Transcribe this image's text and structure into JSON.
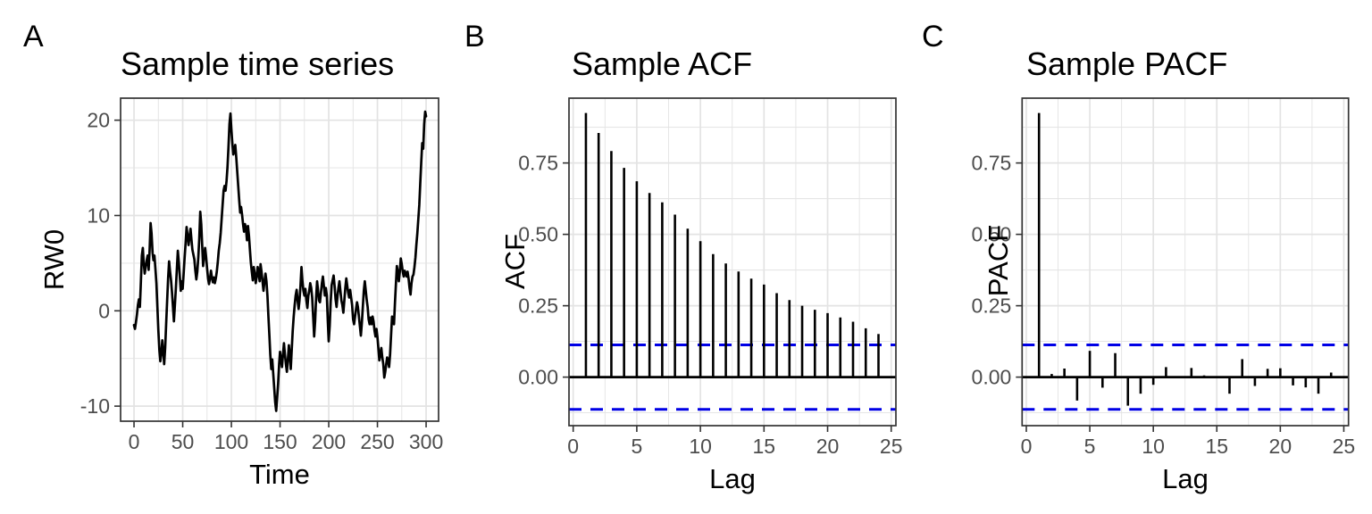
{
  "figure": {
    "background": "#ffffff",
    "line_color": "#000000",
    "grid_color": "#e3e3e3",
    "border_color": "#333333",
    "tick_text_color": "#4d4d4d"
  },
  "chart_data": [
    {
      "type": "line",
      "tag": "A",
      "title": "Sample time series",
      "xlabel": "Time",
      "ylabel": "RW0",
      "xlim": [
        -13.8,
        312.8
      ],
      "ylim": [
        -11.58,
        22.31
      ],
      "xticks": [
        0,
        50,
        100,
        150,
        200,
        250,
        300
      ],
      "xticklabels": [
        "0",
        "50",
        "100",
        "150",
        "200",
        "250",
        "300"
      ],
      "yticks": [
        -10,
        0,
        10,
        20
      ],
      "yticklabels": [
        "-10",
        "0",
        "10",
        "20"
      ],
      "x_minor": [
        25,
        75,
        125,
        175,
        225,
        275
      ],
      "y_minor": [
        -5,
        5,
        15
      ],
      "grid": true,
      "line_color": "#000000",
      "points": [
        [
          0,
          -1.5
        ],
        [
          1,
          -1.9
        ],
        [
          2,
          -1.2
        ],
        [
          3,
          -0.4
        ],
        [
          4,
          0.6
        ],
        [
          5,
          1.2
        ],
        [
          6,
          0.4
        ],
        [
          7,
          3.0
        ],
        [
          8,
          5.8
        ],
        [
          9,
          6.6
        ],
        [
          10,
          5.0
        ],
        [
          11,
          3.9
        ],
        [
          12,
          4.6
        ],
        [
          13,
          5.3
        ],
        [
          14,
          5.8
        ],
        [
          15,
          4.3
        ],
        [
          16,
          6.4
        ],
        [
          17,
          9.2
        ],
        [
          18,
          8.1
        ],
        [
          19,
          6.1
        ],
        [
          20,
          5.3
        ],
        [
          21,
          5.8
        ],
        [
          22,
          4.4
        ],
        [
          23,
          2.9
        ],
        [
          24,
          0.4
        ],
        [
          25,
          -2.1
        ],
        [
          26,
          -4.1
        ],
        [
          27,
          -5.3
        ],
        [
          28,
          -4.4
        ],
        [
          29,
          -3.1
        ],
        [
          30,
          -4.3
        ],
        [
          31,
          -5.6
        ],
        [
          32,
          -3.9
        ],
        [
          33,
          -1.4
        ],
        [
          34,
          1.0
        ],
        [
          35,
          3.4
        ],
        [
          36,
          5.2
        ],
        [
          37,
          4.1
        ],
        [
          38,
          3.2
        ],
        [
          39,
          1.9
        ],
        [
          40,
          0.5
        ],
        [
          41,
          -1.1
        ],
        [
          42,
          0.6
        ],
        [
          43,
          2.4
        ],
        [
          44,
          4.4
        ],
        [
          45,
          6.3
        ],
        [
          46,
          5.1
        ],
        [
          47,
          3.6
        ],
        [
          48,
          2.1
        ],
        [
          49,
          3.1
        ],
        [
          50,
          2.3
        ],
        [
          51,
          3.9
        ],
        [
          52,
          5.6
        ],
        [
          53,
          7.1
        ],
        [
          54,
          8.8
        ],
        [
          55,
          7.9
        ],
        [
          56,
          6.9
        ],
        [
          57,
          7.8
        ],
        [
          58,
          8.6
        ],
        [
          59,
          7.4
        ],
        [
          60,
          6.4
        ],
        [
          61,
          5.9
        ],
        [
          62,
          5.4
        ],
        [
          63,
          4.2
        ],
        [
          64,
          3.3
        ],
        [
          65,
          4.1
        ],
        [
          66,
          5.6
        ],
        [
          67,
          7.6
        ],
        [
          68,
          10.4
        ],
        [
          69,
          9.1
        ],
        [
          70,
          7.0
        ],
        [
          71,
          4.7
        ],
        [
          72,
          5.6
        ],
        [
          73,
          6.6
        ],
        [
          74,
          5.7
        ],
        [
          75,
          4.5
        ],
        [
          76,
          3.4
        ],
        [
          77,
          2.8
        ],
        [
          78,
          3.4
        ],
        [
          79,
          4.2
        ],
        [
          80,
          3.5
        ],
        [
          81,
          3.0
        ],
        [
          82,
          3.5
        ],
        [
          83,
          2.9
        ],
        [
          84,
          3.4
        ],
        [
          85,
          4.1
        ],
        [
          86,
          5.1
        ],
        [
          87,
          6.3
        ],
        [
          88,
          7.1
        ],
        [
          89,
          8.2
        ],
        [
          90,
          9.6
        ],
        [
          91,
          11.1
        ],
        [
          92,
          12.6
        ],
        [
          93,
          13.1
        ],
        [
          94,
          12.6
        ],
        [
          95,
          13.6
        ],
        [
          96,
          15.1
        ],
        [
          97,
          17.2
        ],
        [
          98,
          19.6
        ],
        [
          99,
          20.7
        ],
        [
          100,
          19.1
        ],
        [
          101,
          17.6
        ],
        [
          102,
          16.4
        ],
        [
          103,
          16.9
        ],
        [
          104,
          17.4
        ],
        [
          105,
          16.1
        ],
        [
          106,
          14.6
        ],
        [
          107,
          13.1
        ],
        [
          108,
          11.6
        ],
        [
          109,
          10.3
        ],
        [
          110,
          10.9
        ],
        [
          111,
          10.1
        ],
        [
          112,
          9.1
        ],
        [
          113,
          8.3
        ],
        [
          114,
          9.1
        ],
        [
          115,
          8.6
        ],
        [
          116,
          7.4
        ],
        [
          117,
          8.9
        ],
        [
          118,
          7.9
        ],
        [
          119,
          6.4
        ],
        [
          120,
          5.1
        ],
        [
          121,
          4.1
        ],
        [
          122,
          3.2
        ],
        [
          123,
          4.6
        ],
        [
          124,
          3.9
        ],
        [
          125,
          2.9
        ],
        [
          126,
          3.6
        ],
        [
          127,
          4.6
        ],
        [
          128,
          3.9
        ],
        [
          129,
          3.1
        ],
        [
          130,
          4.9
        ],
        [
          131,
          4.1
        ],
        [
          132,
          3.1
        ],
        [
          133,
          2.1
        ],
        [
          134,
          3.1
        ],
        [
          135,
          3.9
        ],
        [
          136,
          3.1
        ],
        [
          137,
          1.6
        ],
        [
          138,
          -0.6
        ],
        [
          139,
          -2.6
        ],
        [
          140,
          -4.6
        ],
        [
          141,
          -6.1
        ],
        [
          142,
          -5.1
        ],
        [
          143,
          -6.6
        ],
        [
          144,
          -8.1
        ],
        [
          145,
          -9.6
        ],
        [
          146,
          -10.5
        ],
        [
          147,
          -9.1
        ],
        [
          148,
          -7.6
        ],
        [
          149,
          -5.6
        ],
        [
          150,
          -4.3
        ],
        [
          151,
          -5.1
        ],
        [
          152,
          -5.9
        ],
        [
          153,
          -4.6
        ],
        [
          154,
          -3.4
        ],
        [
          155,
          -4.6
        ],
        [
          156,
          -5.6
        ],
        [
          157,
          -6.4
        ],
        [
          158,
          -5.1
        ],
        [
          159,
          -3.6
        ],
        [
          160,
          -4.6
        ],
        [
          161,
          -6.1
        ],
        [
          162,
          -4.1
        ],
        [
          163,
          -2.1
        ],
        [
          164,
          -0.6
        ],
        [
          165,
          0.6
        ],
        [
          166,
          1.6
        ],
        [
          167,
          2.2
        ],
        [
          168,
          1.1
        ],
        [
          169,
          0.2
        ],
        [
          170,
          1.1
        ],
        [
          171,
          2.6
        ],
        [
          172,
          4.6
        ],
        [
          173,
          3.1
        ],
        [
          174,
          2.1
        ],
        [
          175,
          1.6
        ],
        [
          176,
          2.3
        ],
        [
          177,
          1.1
        ],
        [
          178,
          0.3
        ],
        [
          179,
          1.6
        ],
        [
          180,
          2.1
        ],
        [
          181,
          2.9
        ],
        [
          182,
          2.4
        ],
        [
          183,
          1.4
        ],
        [
          184,
          -0.6
        ],
        [
          185,
          -2.7
        ],
        [
          186,
          -1.1
        ],
        [
          187,
          1.4
        ],
        [
          188,
          3.1
        ],
        [
          189,
          2.1
        ],
        [
          190,
          1.1
        ],
        [
          191,
          0.9
        ],
        [
          192,
          1.9
        ],
        [
          193,
          2.9
        ],
        [
          194,
          3.6
        ],
        [
          195,
          2.6
        ],
        [
          196,
          1.6
        ],
        [
          197,
          2.4
        ],
        [
          198,
          1.6
        ],
        [
          199,
          -1.1
        ],
        [
          200,
          -3.2
        ],
        [
          201,
          -1.6
        ],
        [
          202,
          0.9
        ],
        [
          203,
          2.7
        ],
        [
          204,
          3.2
        ],
        [
          205,
          3.7
        ],
        [
          206,
          2.6
        ],
        [
          207,
          1.2
        ],
        [
          208,
          0.4
        ],
        [
          209,
          1.6
        ],
        [
          210,
          2.4
        ],
        [
          211,
          3.1
        ],
        [
          212,
          2.1
        ],
        [
          213,
          1.1
        ],
        [
          214,
          0.6
        ],
        [
          215,
          -0.2
        ],
        [
          216,
          1.1
        ],
        [
          217,
          2.4
        ],
        [
          218,
          3.4
        ],
        [
          219,
          2.6
        ],
        [
          220,
          1.9
        ],
        [
          221,
          1.4
        ],
        [
          222,
          2.2
        ],
        [
          223,
          1.4
        ],
        [
          224,
          0.6
        ],
        [
          225,
          -0.9
        ],
        [
          226,
          -1.4
        ],
        [
          227,
          -0.6
        ],
        [
          228,
          0.2
        ],
        [
          229,
          0.9
        ],
        [
          230,
          0.4
        ],
        [
          231,
          -0.6
        ],
        [
          232,
          -1.6
        ],
        [
          233,
          -2.6
        ],
        [
          234,
          -1.3
        ],
        [
          235,
          0.4
        ],
        [
          236,
          2.1
        ],
        [
          237,
          3.1
        ],
        [
          238,
          2.1
        ],
        [
          239,
          1.1
        ],
        [
          240,
          0.4
        ],
        [
          241,
          -0.9
        ],
        [
          242,
          -1.4
        ],
        [
          243,
          -0.7
        ],
        [
          244,
          -1.4
        ],
        [
          245,
          -0.6
        ],
        [
          246,
          -1.1
        ],
        [
          247,
          -2.1
        ],
        [
          248,
          -2.7
        ],
        [
          249,
          -1.9
        ],
        [
          250,
          -2.7
        ],
        [
          251,
          -3.9
        ],
        [
          252,
          -5.2
        ],
        [
          253,
          -4.6
        ],
        [
          254,
          -3.9
        ],
        [
          255,
          -4.9
        ],
        [
          256,
          -5.6
        ],
        [
          257,
          -7.0
        ],
        [
          258,
          -6.4
        ],
        [
          259,
          -5.6
        ],
        [
          260,
          -4.9
        ],
        [
          261,
          -5.2
        ],
        [
          262,
          -5.9
        ],
        [
          263,
          -4.6
        ],
        [
          264,
          -2.6
        ],
        [
          265,
          -0.6
        ],
        [
          266,
          -1.1
        ],
        [
          267,
          -1.4
        ],
        [
          268,
          0.9
        ],
        [
          269,
          2.9
        ],
        [
          270,
          4.7
        ],
        [
          271,
          4.1
        ],
        [
          272,
          3.1
        ],
        [
          273,
          4.1
        ],
        [
          274,
          5.5
        ],
        [
          275,
          4.9
        ],
        [
          276,
          4.1
        ],
        [
          277,
          3.6
        ],
        [
          278,
          4.2
        ],
        [
          279,
          3.9
        ],
        [
          280,
          3.6
        ],
        [
          281,
          4.1
        ],
        [
          282,
          3.4
        ],
        [
          283,
          2.4
        ],
        [
          284,
          1.7
        ],
        [
          285,
          2.9
        ],
        [
          286,
          3.6
        ],
        [
          287,
          3.8
        ],
        [
          288,
          4.6
        ],
        [
          289,
          5.6
        ],
        [
          290,
          6.9
        ],
        [
          291,
          8.1
        ],
        [
          292,
          9.6
        ],
        [
          293,
          11.1
        ],
        [
          294,
          13.4
        ],
        [
          295,
          15.6
        ],
        [
          296,
          17.6
        ],
        [
          297,
          17.0
        ],
        [
          298,
          19.6
        ],
        [
          299,
          20.9
        ],
        [
          300,
          20.4
        ]
      ]
    },
    {
      "type": "stem",
      "tag": "B",
      "title": "Sample ACF",
      "xlabel": "Lag",
      "ylabel": "ACF",
      "xlim": [
        -0.33,
        25.37
      ],
      "ylim": [
        -0.17,
        0.977
      ],
      "xticks": [
        0,
        5,
        10,
        15,
        20,
        25
      ],
      "xticklabels": [
        "0",
        "5",
        "10",
        "15",
        "20",
        "25"
      ],
      "yticks": [
        0,
        0.25,
        0.5,
        0.75
      ],
      "yticklabels": [
        "0.00",
        "0.25",
        "0.50",
        "0.75"
      ],
      "x_minor": [
        2.5,
        7.5,
        12.5,
        17.5,
        22.5
      ],
      "y_minor": [
        -0.125,
        0.125,
        0.375,
        0.625,
        0.875
      ],
      "grid": true,
      "stem_color": "#000000",
      "conf_bounds": [
        -0.113,
        0.113
      ],
      "conf_color": "#0000e6",
      "lags": [
        1,
        2,
        3,
        4,
        5,
        6,
        7,
        8,
        9,
        10,
        11,
        12,
        13,
        14,
        15,
        16,
        17,
        18,
        19,
        20,
        21,
        22,
        23,
        24
      ],
      "values": [
        0.925,
        0.855,
        0.792,
        0.733,
        0.686,
        0.645,
        0.612,
        0.569,
        0.52,
        0.476,
        0.431,
        0.398,
        0.37,
        0.345,
        0.324,
        0.294,
        0.27,
        0.25,
        0.236,
        0.224,
        0.209,
        0.194,
        0.171,
        0.151
      ]
    },
    {
      "type": "stem",
      "tag": "C",
      "title": "Sample PACF",
      "xlabel": "Lag",
      "ylabel": "PACF",
      "xlim": [
        -0.33,
        25.37
      ],
      "ylim": [
        -0.17,
        0.977
      ],
      "xticks": [
        0,
        5,
        10,
        15,
        20,
        25
      ],
      "xticklabels": [
        "0",
        "5",
        "10",
        "15",
        "20",
        "25"
      ],
      "yticks": [
        0,
        0.25,
        0.5,
        0.75
      ],
      "yticklabels": [
        "0.00",
        "0.25",
        "0.50",
        "0.75"
      ],
      "x_minor": [
        2.5,
        7.5,
        12.5,
        17.5,
        22.5
      ],
      "y_minor": [
        -0.125,
        0.125,
        0.375,
        0.625,
        0.875
      ],
      "grid": true,
      "stem_color": "#000000",
      "conf_bounds": [
        -0.113,
        0.113
      ],
      "conf_color": "#0000e6",
      "lags": [
        1,
        2,
        3,
        4,
        5,
        6,
        7,
        8,
        9,
        10,
        11,
        12,
        13,
        14,
        15,
        16,
        17,
        18,
        19,
        20,
        21,
        22,
        23,
        24
      ],
      "values": [
        0.925,
        0.011,
        0.03,
        -0.082,
        0.092,
        -0.037,
        0.084,
        -0.1,
        -0.058,
        -0.027,
        0.035,
        -0.004,
        0.032,
        0.006,
        0.002,
        -0.058,
        0.063,
        -0.031,
        0.029,
        0.031,
        -0.029,
        -0.036,
        -0.058,
        0.016
      ]
    }
  ]
}
